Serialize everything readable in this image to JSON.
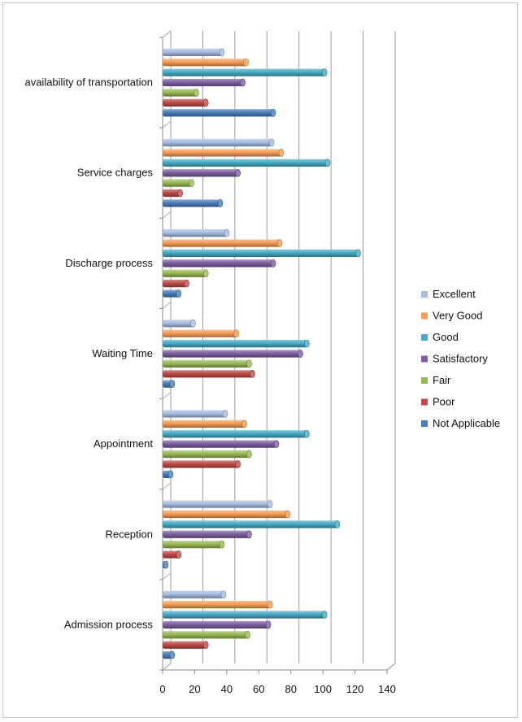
{
  "chart_data": {
    "type": "bar",
    "orientation": "horizontal",
    "categories": [
      "Admission process",
      "Reception",
      "Appointment",
      "Waiting Time",
      "Discharge process",
      "Service charges",
      "availability of transportation"
    ],
    "series": [
      {
        "name": "Not Applicable",
        "color": "#4a7ebb",
        "values": [
          6,
          2,
          5,
          6,
          10,
          36,
          69
        ]
      },
      {
        "name": "Poor",
        "color": "#be4b48",
        "values": [
          27,
          10,
          47,
          56,
          15,
          11,
          27
        ]
      },
      {
        "name": "Fair",
        "color": "#98b954",
        "values": [
          53,
          37,
          54,
          54,
          27,
          18,
          21
        ]
      },
      {
        "name": "Satisfactory",
        "color": "#7d5fa0",
        "values": [
          66,
          54,
          71,
          86,
          69,
          47,
          50
        ]
      },
      {
        "name": "Good",
        "color": "#46aac5",
        "values": [
          101,
          109,
          90,
          90,
          122,
          103,
          101
        ]
      },
      {
        "name": "Very Good",
        "color": "#f59d56",
        "values": [
          67,
          78,
          51,
          46,
          73,
          74,
          52
        ]
      },
      {
        "name": "Excellent",
        "color": "#a7bde0",
        "values": [
          38,
          67,
          39,
          19,
          40,
          68,
          37
        ]
      }
    ],
    "legend_order": [
      "Excellent",
      "Very Good",
      "Good",
      "Satisfactory",
      "Fair",
      "Poor",
      "Not Applicable"
    ],
    "xlim": [
      0,
      140
    ],
    "xticks": [
      "0",
      "20",
      "40",
      "60",
      "80",
      "100",
      "120",
      "140"
    ],
    "grid": "vertical",
    "legend_position": "right",
    "title": "",
    "xlabel": "",
    "ylabel": ""
  }
}
